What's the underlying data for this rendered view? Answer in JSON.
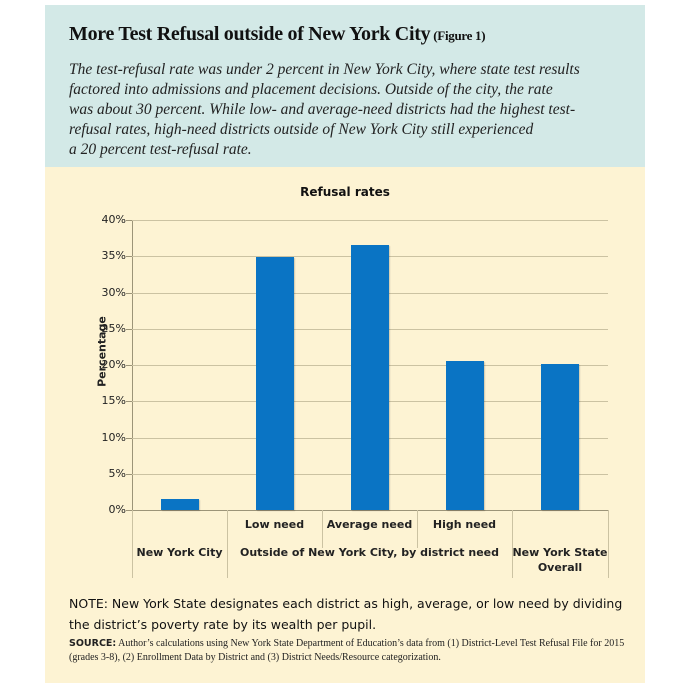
{
  "header": {
    "title": "More Test Refusal outside of New York City",
    "figure_label": "(Figure 1)",
    "intro_lines": [
      "The test-refusal rate was under 2 percent in New York City, where state test results",
      "factored into admissions and placement decisions. Outside of the city, the rate",
      "was about 30 percent. While low- and average-need districts had the highest test-",
      "refusal rates, high-need districts outside of New York City still experienced",
      "a 20 percent test-refusal rate."
    ],
    "bg_color": "#d3e9e7"
  },
  "chart_data": {
    "type": "bar",
    "title": "Refusal rates",
    "xlabel": "",
    "ylabel": "Percentage",
    "ylim": [
      0,
      40
    ],
    "yticks": [
      "0%",
      "5%",
      "10%",
      "15%",
      "20%",
      "25%",
      "30%",
      "35%",
      "40%"
    ],
    "grid": true,
    "categories": [
      "New York City",
      "Low need",
      "Average need",
      "High need",
      "New York State Overall"
    ],
    "values": [
      1.5,
      34.9,
      36.5,
      20.5,
      20.2
    ],
    "group_labels": [
      {
        "label": "New York City",
        "categories": [
          "New York City"
        ]
      },
      {
        "label": "Outside of New York City, by district need",
        "categories": [
          "Low need",
          "Average need",
          "High need"
        ]
      },
      {
        "label": "New York State Overall",
        "categories": [
          "New York State Overall"
        ]
      }
    ],
    "bar_color": "#0a74c4",
    "legend": null
  },
  "labels": {
    "low": "Low need",
    "average": "Average need",
    "high": "High need",
    "nyc": "New York City",
    "outside": "Outside of New York City, by district need",
    "state_line1": "New York State",
    "state_line2": "Overall"
  },
  "footer": {
    "note": "NOTE: New York State designates each district as high, average, or low need by dividing the district’s poverty rate by its wealth per pupil.",
    "source_label": "SOURCE:",
    "source_text": " Author’s calculations using New York State Department of Education’s data from (1) District-Level Test Refusal File for 2015 (grades 3-8), (2) Enrollment Data by District and (3) District Needs/Resource categorization."
  }
}
